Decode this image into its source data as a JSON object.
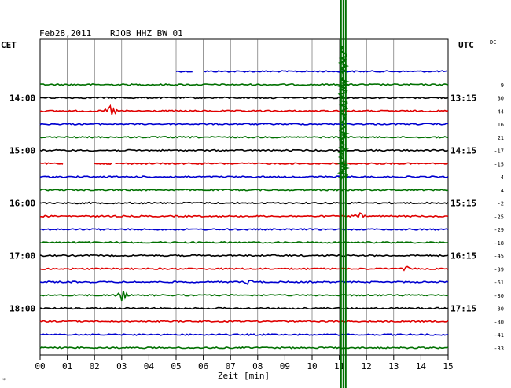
{
  "header": {
    "date": "Feb28,2011",
    "station": "RJOB HHZ BW 01",
    "left_tz": "CET",
    "right_tz": "UTC",
    "dc_label": "DC",
    "xlabel": "Zeit [min]",
    "corner_mark": "*"
  },
  "chart_data": {
    "type": "line",
    "title": "Feb28,2011  RJOB HHZ BW 01",
    "xlabel": "Zeit [min]",
    "xlim": [
      0,
      15
    ],
    "x_ticks": [
      "00",
      "01",
      "02",
      "03",
      "04",
      "05",
      "06",
      "07",
      "08",
      "09",
      "10",
      "11",
      "12",
      "13",
      "14",
      "15"
    ],
    "grid": true,
    "left_hour_labels": [
      {
        "row": 2,
        "label": "14:00"
      },
      {
        "row": 6,
        "label": "15:00"
      },
      {
        "row": 10,
        "label": "16:00"
      },
      {
        "row": 14,
        "label": "17:00"
      },
      {
        "row": 18,
        "label": "18:00"
      }
    ],
    "right_hour_labels": [
      {
        "row": 2,
        "label": "13:15"
      },
      {
        "row": 6,
        "label": "14:15"
      },
      {
        "row": 10,
        "label": "15:15"
      },
      {
        "row": 14,
        "label": "16:15"
      },
      {
        "row": 18,
        "label": "17:15"
      }
    ],
    "rows": [
      {
        "color": "#0000d0",
        "dc": "",
        "start_min": 5.0,
        "gaps": [
          [
            5.65,
            6.0
          ]
        ],
        "events": []
      },
      {
        "color": "#007000",
        "dc": "9",
        "start_min": 0,
        "gaps": [],
        "events": []
      },
      {
        "color": "#000000",
        "dc": "30",
        "start_min": 0,
        "gaps": [],
        "events": []
      },
      {
        "color": "#e00000",
        "dc": "44",
        "start_min": 0,
        "gaps": [],
        "events": [
          {
            "min": 2.6,
            "amp": 8
          }
        ]
      },
      {
        "color": "#0000d0",
        "dc": "16",
        "start_min": 0,
        "gaps": [],
        "events": []
      },
      {
        "color": "#007000",
        "dc": "21",
        "start_min": 0,
        "gaps": [],
        "events": []
      },
      {
        "color": "#000000",
        "dc": "-17",
        "start_min": 0,
        "gaps": [],
        "events": []
      },
      {
        "color": "#e00000",
        "dc": "-15",
        "start_min": 0,
        "gaps": [
          [
            0.9,
            1.95
          ],
          [
            2.65,
            2.75
          ]
        ],
        "events": []
      },
      {
        "color": "#0000d0",
        "dc": "4",
        "start_min": 0,
        "gaps": [],
        "events": []
      },
      {
        "color": "#007000",
        "dc": "4",
        "start_min": 0,
        "gaps": [],
        "events": []
      },
      {
        "color": "#000000",
        "dc": "-2",
        "start_min": 0,
        "gaps": [],
        "events": []
      },
      {
        "color": "#e00000",
        "dc": "-25",
        "start_min": 0,
        "gaps": [],
        "events": [
          {
            "min": 11.7,
            "amp": 5
          }
        ]
      },
      {
        "color": "#0000d0",
        "dc": "-29",
        "start_min": 0,
        "gaps": [],
        "events": []
      },
      {
        "color": "#007000",
        "dc": "-18",
        "start_min": 0,
        "gaps": [],
        "events": []
      },
      {
        "color": "#000000",
        "dc": "-45",
        "start_min": 0,
        "gaps": [],
        "events": []
      },
      {
        "color": "#e00000",
        "dc": "-39",
        "start_min": 0,
        "gaps": [],
        "events": [
          {
            "min": 13.5,
            "amp": 2
          }
        ]
      },
      {
        "color": "#0000d0",
        "dc": "-61",
        "start_min": 0,
        "gaps": [],
        "events": [
          {
            "min": 7.7,
            "amp": 3
          }
        ]
      },
      {
        "color": "#007000",
        "dc": "-30",
        "start_min": 0,
        "gaps": [],
        "events": [
          {
            "min": 3.0,
            "amp": 7
          }
        ]
      },
      {
        "color": "#000000",
        "dc": "-30",
        "start_min": 0,
        "gaps": [],
        "events": []
      },
      {
        "color": "#e00000",
        "dc": "-30",
        "start_min": 0,
        "gaps": [],
        "events": []
      },
      {
        "color": "#0000d0",
        "dc": "-41",
        "start_min": 0,
        "gaps": [],
        "events": []
      },
      {
        "color": "#007000",
        "dc": "-33",
        "start_min": 0,
        "gaps": [],
        "events": []
      }
    ],
    "spike": {
      "min": 11.15,
      "color": "#007000"
    }
  }
}
